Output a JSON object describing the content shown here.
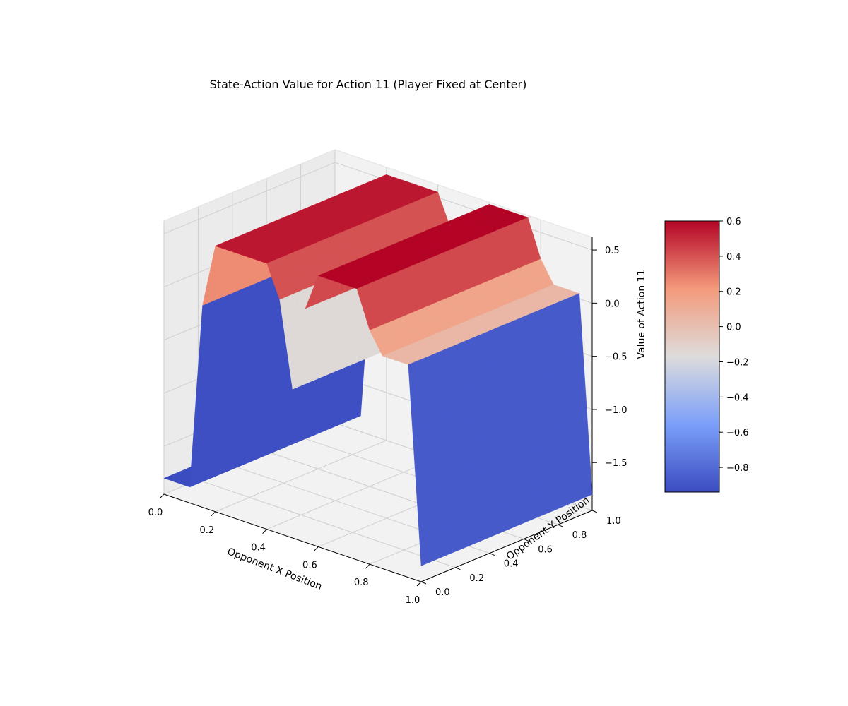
{
  "chart_data": {
    "type": "surface3d",
    "title": "State-Action Value for Action 11 (Player Fixed at Center)",
    "xlabel": "Opponent X Position",
    "ylabel": "Opponent Y Position",
    "zlabel": "Value of Action 11",
    "x_ticks": [
      "0.0",
      "0.2",
      "0.4",
      "0.6",
      "0.8",
      "1.0"
    ],
    "y_ticks": [
      "0.0",
      "0.2",
      "0.4",
      "0.6",
      "0.8",
      "1.0"
    ],
    "z_ticks": [
      "0.5",
      "0.0",
      "−0.5",
      "−1.0",
      "−1.5"
    ],
    "xlim": [
      0,
      1
    ],
    "ylim": [
      0,
      1
    ],
    "zlim": [
      -1.95,
      0.62
    ],
    "grid": true,
    "colormap": "coolwarm",
    "surface_profile": {
      "x": [
        0.0,
        0.05,
        0.1,
        0.15,
        0.2,
        0.25,
        0.3,
        0.35,
        0.4,
        0.45,
        0.5,
        0.55,
        0.6,
        0.65,
        0.7,
        0.75,
        0.8,
        0.85,
        0.9,
        0.95,
        1.0
      ],
      "value": [
        -1.8,
        -1.8,
        -1.8,
        -0.05,
        0.55,
        0.55,
        0.55,
        0.55,
        0.55,
        0.25,
        -0.55,
        0.25,
        0.6,
        0.6,
        0.6,
        0.6,
        0.25,
        0.05,
        0.05,
        0.05,
        -1.8
      ],
      "constant_along": "Opponent Y Position"
    },
    "colorbar": {
      "ticks": [
        "0.6",
        "0.4",
        "0.2",
        "0.0",
        "−0.2",
        "−0.4",
        "−0.6",
        "−0.8"
      ],
      "range": [
        -0.94,
        0.6
      ]
    }
  }
}
